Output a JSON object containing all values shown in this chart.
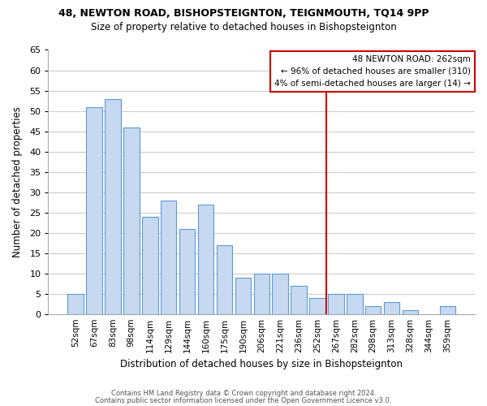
{
  "title": "48, NEWTON ROAD, BISHOPSTEIGNTON, TEIGNMOUTH, TQ14 9PP",
  "subtitle": "Size of property relative to detached houses in Bishopsteignton",
  "xlabel": "Distribution of detached houses by size in Bishopsteignton",
  "ylabel": "Number of detached properties",
  "bar_labels": [
    "52sqm",
    "67sqm",
    "83sqm",
    "98sqm",
    "114sqm",
    "129sqm",
    "144sqm",
    "160sqm",
    "175sqm",
    "190sqm",
    "206sqm",
    "221sqm",
    "236sqm",
    "252sqm",
    "267sqm",
    "282sqm",
    "298sqm",
    "313sqm",
    "328sqm",
    "344sqm",
    "359sqm"
  ],
  "bar_values": [
    5,
    51,
    53,
    46,
    24,
    28,
    21,
    27,
    17,
    9,
    10,
    10,
    7,
    4,
    5,
    5,
    2,
    3,
    1,
    0,
    2
  ],
  "bar_color": "#c6d9f0",
  "bar_edge_color": "#5b9bd5",
  "ylim": [
    0,
    65
  ],
  "yticks": [
    0,
    5,
    10,
    15,
    20,
    25,
    30,
    35,
    40,
    45,
    50,
    55,
    60,
    65
  ],
  "vline_x": 14,
  "vline_color": "#cc0000",
  "annotation_line1": "48 NEWTON ROAD: 262sqm",
  "annotation_line2": "← 96% of detached houses are smaller (310)",
  "annotation_line3": "4% of semi-detached houses are larger (14) →",
  "footer_line1": "Contains HM Land Registry data © Crown copyright and database right 2024.",
  "footer_line2": "Contains public sector information licensed under the Open Government Licence v3.0.",
  "background_color": "#ffffff",
  "grid_color": "#cccccc"
}
